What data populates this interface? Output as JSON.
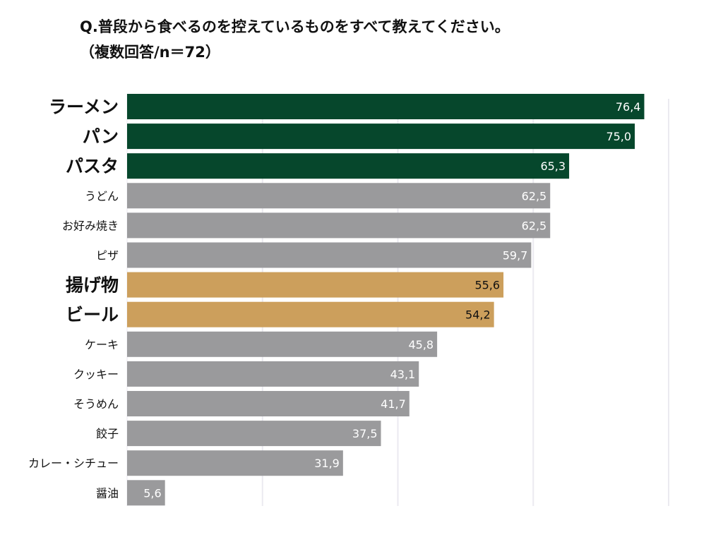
{
  "title_line1": "Q.普段から食べるのを控えているものをすべて教えてください。",
  "title_line2": "（複数回答/n＝72）",
  "colors": {
    "highlight_green": "#06472c",
    "highlight_gold": "#cc9f5c",
    "default_gray": "#9a9a9c",
    "grid": "#ebeaf0"
  },
  "chart_data": {
    "type": "bar",
    "orientation": "horizontal",
    "categories": [
      "ラーメン",
      "パン",
      "パスタ",
      "うどん",
      "お好み焼き",
      "ピザ",
      "揚げ物",
      "ビール",
      "ケーキ",
      "クッキー",
      "そうめん",
      "餃子",
      "カレー・シチュー",
      "醤油"
    ],
    "values": [
      76.4,
      75.0,
      65.3,
      62.5,
      62.5,
      59.7,
      55.6,
      54.2,
      45.8,
      43.1,
      41.7,
      37.5,
      31.9,
      5.6
    ],
    "data_labels": [
      "76,4",
      "75,0",
      "65,3",
      "62,5",
      "62,5",
      "59,7",
      "55,6",
      "54,2",
      "45,8",
      "43,1",
      "41,7",
      "37,5",
      "31,9",
      "5,6"
    ],
    "bar_colors": [
      "green",
      "green",
      "green",
      "gray",
      "gray",
      "gray",
      "gold",
      "gold",
      "gray",
      "gray",
      "gray",
      "gray",
      "gray",
      "gray"
    ],
    "emphasized_labels": [
      true,
      true,
      true,
      false,
      false,
      false,
      true,
      true,
      false,
      false,
      false,
      false,
      false,
      false
    ],
    "xlim": [
      0,
      80
    ],
    "grid_values": [
      20,
      40,
      60,
      80
    ],
    "grid": true,
    "title": "Q.普段から食べるのを控えているものをすべて教えてください。（複数回答/n＝72）",
    "xlabel": "",
    "ylabel": ""
  }
}
